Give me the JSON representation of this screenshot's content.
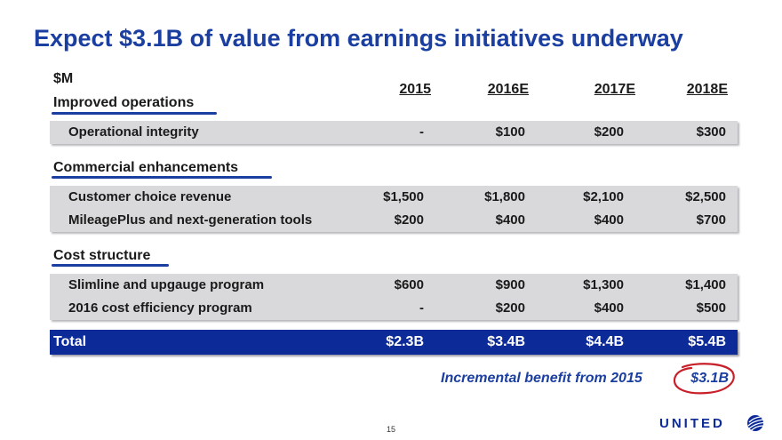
{
  "title": "Expect $3.1B of value from earnings initiatives underway",
  "unit_label": "$M",
  "columns": [
    "2015",
    "2016E",
    "2017E",
    "2018E"
  ],
  "sections": {
    "operations": {
      "heading": "Improved operations",
      "rows": [
        {
          "label": "Operational integrity",
          "values": [
            "-",
            "$100",
            "$200",
            "$300"
          ]
        }
      ]
    },
    "commercial": {
      "heading": "Commercial enhancements",
      "rows": [
        {
          "label": "Customer choice revenue",
          "values": [
            "$1,500",
            "$1,800",
            "$2,100",
            "$2,500"
          ]
        },
        {
          "label": "MileagePlus and next-generation tools",
          "values": [
            "$200",
            "$400",
            "$400",
            "$700"
          ]
        }
      ]
    },
    "cost": {
      "heading": "Cost structure",
      "rows": [
        {
          "label": "Slimline and upgauge program",
          "values": [
            "$600",
            "$900",
            "$1,300",
            "$1,400"
          ]
        },
        {
          "label": "2016 cost efficiency program",
          "values": [
            "-",
            "$200",
            "$400",
            "$500"
          ]
        }
      ]
    }
  },
  "total": {
    "label": "Total",
    "values": [
      "$2.3B",
      "$3.4B",
      "$4.4B",
      "$5.4B"
    ]
  },
  "incremental": {
    "label": "Incremental benefit from 2015",
    "value": "$3.1B"
  },
  "page_number": "15",
  "logo": {
    "text": "UNITED",
    "icon": "united-globe-icon"
  },
  "colors": {
    "title": "#1b3fa0",
    "band": "#d9d9db",
    "total_band": "#0c2a98",
    "underline": "#1b3fa0",
    "circle": "#c8202a"
  }
}
